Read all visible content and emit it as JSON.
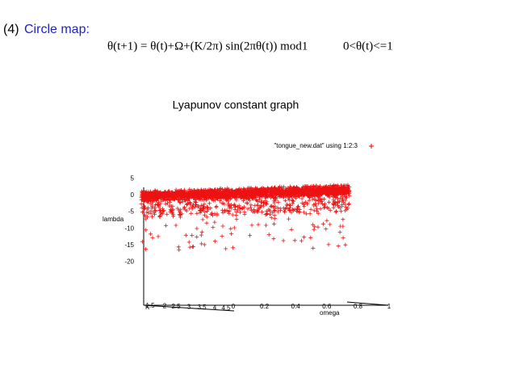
{
  "heading": {
    "number": "(4)",
    "title": "Circle map:"
  },
  "equation": "θ(t+1) = θ(t)+Ω+(K/2π) sin(2πθ(t)) mod1",
  "condition": "0<θ(t)<=1",
  "plot": {
    "title": "Lyapunov constant graph",
    "legend": "\"tongue_new.dat\" using 1:2:3",
    "z_label": "lambda",
    "x_label": "K",
    "y_label": "omega",
    "z_ticks": [
      5,
      0,
      -5,
      -10,
      -15,
      -20
    ],
    "x_ticks": [
      1.5,
      2,
      2.5,
      3,
      3.5,
      4,
      4.5
    ],
    "y_ticks": [
      0,
      0.2,
      0.4,
      0.6,
      0.8,
      1
    ]
  }
}
